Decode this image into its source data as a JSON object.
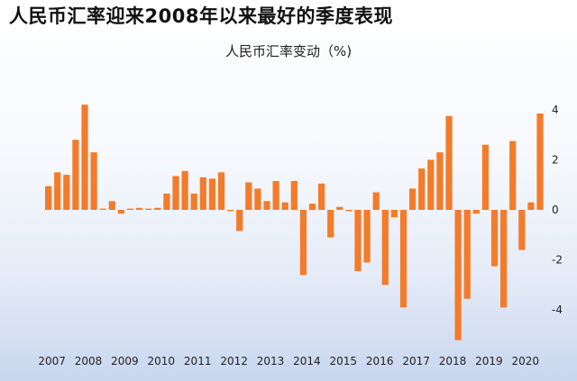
{
  "page": {
    "title": "人民币汇率迎来2008年以来最好的季度表现"
  },
  "chart_data": {
    "type": "bar",
    "title": "人民币汇率迎来2008年以来最好的季度表现",
    "subtitle": "人民币汇率变动（%)",
    "xlabel": "",
    "ylabel": "",
    "colors": {
      "bar": "#f47b2a"
    },
    "ylim": [
      -5.3,
      4.6
    ],
    "y_ticks": [
      4,
      2,
      0,
      -2,
      -4
    ],
    "y_axis_side": "right",
    "grid": false,
    "x_tick_labels": [
      "2007",
      "2008",
      "2009",
      "2010",
      "2011",
      "2012",
      "2013",
      "2014",
      "2015",
      "2016",
      "2017",
      "2018",
      "2019",
      "2020"
    ],
    "values": [
      0.95,
      1.5,
      1.4,
      2.8,
      4.2,
      2.3,
      0.05,
      0.35,
      -0.15,
      0.05,
      0.08,
      0.05,
      0.08,
      0.65,
      1.35,
      1.55,
      0.65,
      1.3,
      1.25,
      1.5,
      -0.05,
      -0.85,
      1.1,
      0.85,
      0.35,
      1.15,
      0.3,
      1.15,
      -2.6,
      0.25,
      1.05,
      -1.1,
      0.12,
      -0.05,
      -2.45,
      -2.1,
      0.7,
      -3.0,
      -0.3,
      -3.9,
      0.85,
      1.65,
      2.0,
      2.3,
      3.75,
      -5.2,
      -3.55,
      -0.15,
      2.6,
      -2.25,
      -3.9,
      2.75,
      -1.6,
      0.3,
      3.85
    ]
  }
}
